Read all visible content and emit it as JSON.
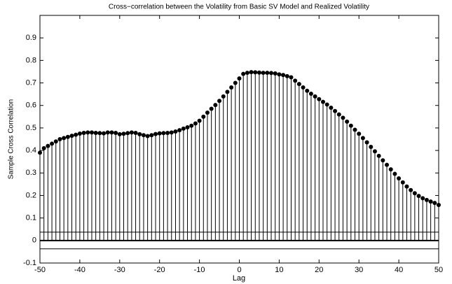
{
  "chart_data": {
    "type": "stem",
    "title": "Cross−correlation between the Volatility from Basic SV Model and Realized Volatility",
    "xlabel": "Lag",
    "ylabel": "Sample Cross Correlation",
    "x": [
      -50,
      -49,
      -48,
      -47,
      -46,
      -45,
      -44,
      -43,
      -42,
      -41,
      -40,
      -39,
      -38,
      -37,
      -36,
      -35,
      -34,
      -33,
      -32,
      -31,
      -30,
      -29,
      -28,
      -27,
      -26,
      -25,
      -24,
      -23,
      -22,
      -21,
      -20,
      -19,
      -18,
      -17,
      -16,
      -15,
      -14,
      -13,
      -12,
      -11,
      -10,
      -9,
      -8,
      -7,
      -6,
      -5,
      -4,
      -3,
      -2,
      -1,
      0,
      1,
      2,
      3,
      4,
      5,
      6,
      7,
      8,
      9,
      10,
      11,
      12,
      13,
      14,
      15,
      16,
      17,
      18,
      19,
      20,
      21,
      22,
      23,
      24,
      25,
      26,
      27,
      28,
      29,
      30,
      31,
      32,
      33,
      34,
      35,
      36,
      37,
      38,
      39,
      40,
      41,
      42,
      43,
      44,
      45,
      46,
      47,
      48,
      49,
      50
    ],
    "values": [
      0.39,
      0.41,
      0.42,
      0.43,
      0.44,
      0.45,
      0.455,
      0.46,
      0.465,
      0.47,
      0.475,
      0.478,
      0.48,
      0.48,
      0.478,
      0.477,
      0.476,
      0.48,
      0.48,
      0.478,
      0.472,
      0.474,
      0.477,
      0.48,
      0.478,
      0.472,
      0.468,
      0.464,
      0.468,
      0.473,
      0.476,
      0.477,
      0.478,
      0.48,
      0.484,
      0.49,
      0.497,
      0.503,
      0.51,
      0.52,
      0.532,
      0.55,
      0.568,
      0.585,
      0.602,
      0.62,
      0.64,
      0.66,
      0.68,
      0.7,
      0.72,
      0.74,
      0.745,
      0.748,
      0.747,
      0.746,
      0.745,
      0.745,
      0.744,
      0.742,
      0.738,
      0.735,
      0.73,
      0.725,
      0.71,
      0.695,
      0.68,
      0.665,
      0.652,
      0.64,
      0.628,
      0.616,
      0.604,
      0.59,
      0.575,
      0.56,
      0.545,
      0.528,
      0.51,
      0.492,
      0.474,
      0.455,
      0.436,
      0.416,
      0.396,
      0.376,
      0.356,
      0.336,
      0.316,
      0.296,
      0.276,
      0.258,
      0.24,
      0.224,
      0.21,
      0.198,
      0.188,
      0.18,
      0.173,
      0.167,
      0.158
    ],
    "color": "#000000",
    "confidence_bounds": [
      0.037,
      -0.037
    ],
    "xlim": [
      -50,
      50
    ],
    "xticks": [
      -50,
      -40,
      -30,
      -20,
      -10,
      0,
      10,
      20,
      30,
      40,
      50
    ],
    "ylim": [
      -0.1,
      1.0
    ],
    "yticks": [
      -0.1,
      0,
      0.1,
      0.2,
      0.3,
      0.4,
      0.5,
      0.6,
      0.7,
      0.8,
      0.9
    ],
    "grid": false
  }
}
